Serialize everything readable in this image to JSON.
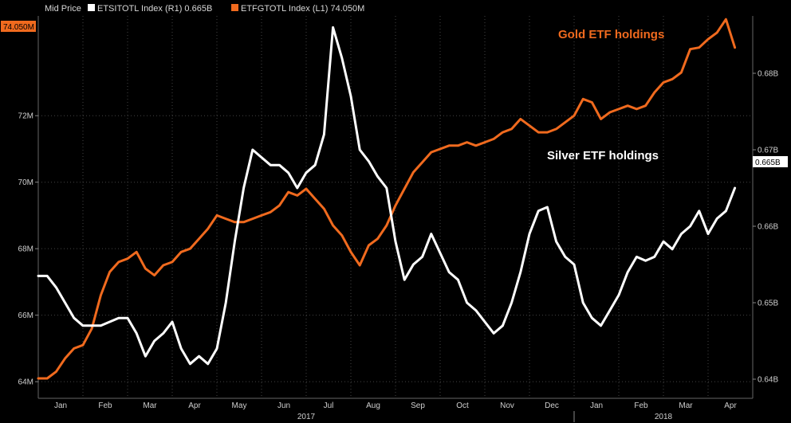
{
  "chart_data": {
    "type": "line",
    "legend": {
      "title": "Mid Price",
      "items": [
        {
          "label": "ETSITOTL Index  (R1) 0.665B",
          "color": "#ffffff"
        },
        {
          "label": "ETFGTOTL Index  (L1) 74.050M",
          "color": "#f06a1e"
        }
      ]
    },
    "y_left": {
      "ticks": [
        "64M",
        "66M",
        "68M",
        "70M",
        "72M"
      ],
      "tick_values": [
        64,
        66,
        68,
        70,
        72
      ],
      "range": [
        63.5,
        75
      ]
    },
    "y_right": {
      "ticks": [
        "0.64B",
        "0.65B",
        "0.66B",
        "0.67B",
        "0.68B"
      ],
      "tick_values": [
        0.64,
        0.65,
        0.66,
        0.67,
        0.68
      ],
      "range": [
        0.6375,
        0.6875
      ]
    },
    "x_range": [
      0,
      16.0
    ],
    "months": [
      {
        "label": "Jan",
        "x": 0.5
      },
      {
        "label": "Feb",
        "x": 1.5
      },
      {
        "label": "Mar",
        "x": 2.5
      },
      {
        "label": "Apr",
        "x": 3.5
      },
      {
        "label": "May",
        "x": 4.5
      },
      {
        "label": "Jun",
        "x": 5.5
      },
      {
        "label": "Jul",
        "x": 6.5
      },
      {
        "label": "Aug",
        "x": 7.5
      },
      {
        "label": "Sep",
        "x": 8.5
      },
      {
        "label": "Oct",
        "x": 9.5
      },
      {
        "label": "Nov",
        "x": 10.5
      },
      {
        "label": "Dec",
        "x": 11.5
      },
      {
        "label": "Jan",
        "x": 12.5
      },
      {
        "label": "Feb",
        "x": 13.5
      },
      {
        "label": "Mar",
        "x": 14.5
      },
      {
        "label": "Apr",
        "x": 15.5
      }
    ],
    "years": [
      {
        "label": "2017",
        "x": 6.0
      },
      {
        "label": "2018",
        "x": 14.0
      }
    ],
    "last_value_badges": {
      "left": "74.050M",
      "right": "0.665B"
    },
    "annotations": {
      "gold": "Gold ETF holdings",
      "silver": "Silver ETF holdings"
    },
    "colors": {
      "gold": "#f06a1e",
      "silver": "#ffffff",
      "background": "#000000",
      "grid": "#444444"
    },
    "grid": true,
    "series": [
      {
        "name": "Gold ETF holdings",
        "axis": "left",
        "x": [
          0,
          0.2,
          0.4,
          0.6,
          0.8,
          1.0,
          1.2,
          1.4,
          1.6,
          1.8,
          2.0,
          2.2,
          2.4,
          2.6,
          2.8,
          3.0,
          3.2,
          3.4,
          3.6,
          3.8,
          4.0,
          4.2,
          4.4,
          4.6,
          4.8,
          5.0,
          5.2,
          5.4,
          5.6,
          5.8,
          6.0,
          6.2,
          6.4,
          6.6,
          6.8,
          7.0,
          7.2,
          7.4,
          7.6,
          7.8,
          8.0,
          8.2,
          8.4,
          8.6,
          8.8,
          9.0,
          9.2,
          9.4,
          9.6,
          9.8,
          10.0,
          10.2,
          10.4,
          10.6,
          10.8,
          11.0,
          11.2,
          11.4,
          11.6,
          11.8,
          12.0,
          12.2,
          12.4,
          12.6,
          12.8,
          13.0,
          13.2,
          13.4,
          13.6,
          13.8,
          14.0,
          14.2,
          14.4,
          14.6,
          14.8,
          15.0,
          15.2,
          15.4,
          15.6
        ],
        "values": [
          64.1,
          64.1,
          64.3,
          64.7,
          65.0,
          65.1,
          65.6,
          66.6,
          67.3,
          67.6,
          67.7,
          67.9,
          67.4,
          67.2,
          67.5,
          67.6,
          67.9,
          68.0,
          68.3,
          68.6,
          69.0,
          68.9,
          68.8,
          68.8,
          68.9,
          69.0,
          69.1,
          69.3,
          69.7,
          69.6,
          69.8,
          69.5,
          69.2,
          68.7,
          68.4,
          67.9,
          67.5,
          68.1,
          68.3,
          68.7,
          69.3,
          69.8,
          70.3,
          70.6,
          70.9,
          71.0,
          71.1,
          71.1,
          71.2,
          71.1,
          71.2,
          71.3,
          71.5,
          71.6,
          71.9,
          71.7,
          71.5,
          71.5,
          71.6,
          71.8,
          72.0,
          72.5,
          72.4,
          71.9,
          72.1,
          72.2,
          72.3,
          72.2,
          72.3,
          72.7,
          73.0,
          73.1,
          73.3,
          74.0,
          74.05,
          74.3,
          74.5,
          74.9,
          74.05
        ],
        "color": "#f06a1e"
      },
      {
        "name": "Silver ETF holdings",
        "axis": "right",
        "x": [
          0,
          0.2,
          0.4,
          0.6,
          0.8,
          1.0,
          1.2,
          1.4,
          1.6,
          1.8,
          2.0,
          2.2,
          2.4,
          2.6,
          2.8,
          3.0,
          3.2,
          3.4,
          3.6,
          3.8,
          4.0,
          4.2,
          4.4,
          4.6,
          4.8,
          5.0,
          5.2,
          5.4,
          5.6,
          5.8,
          6.0,
          6.2,
          6.4,
          6.6,
          6.8,
          7.0,
          7.2,
          7.4,
          7.6,
          7.8,
          8.0,
          8.2,
          8.4,
          8.6,
          8.8,
          9.0,
          9.2,
          9.4,
          9.6,
          9.8,
          10.0,
          10.2,
          10.4,
          10.6,
          10.8,
          11.0,
          11.2,
          11.4,
          11.6,
          11.8,
          12.0,
          12.2,
          12.4,
          12.6,
          12.8,
          13.0,
          13.2,
          13.4,
          13.6,
          13.8,
          14.0,
          14.2,
          14.4,
          14.6,
          14.8,
          15.0,
          15.2,
          15.4,
          15.6
        ],
        "values": [
          0.6535,
          0.6535,
          0.652,
          0.65,
          0.648,
          0.647,
          0.647,
          0.647,
          0.6475,
          0.648,
          0.648,
          0.646,
          0.643,
          0.645,
          0.646,
          0.6475,
          0.644,
          0.642,
          0.643,
          0.642,
          0.644,
          0.65,
          0.658,
          0.665,
          0.67,
          0.669,
          0.668,
          0.668,
          0.667,
          0.665,
          0.667,
          0.668,
          0.672,
          0.686,
          0.682,
          0.677,
          0.67,
          0.6685,
          0.6665,
          0.665,
          0.658,
          0.653,
          0.655,
          0.656,
          0.659,
          0.6565,
          0.654,
          0.653,
          0.65,
          0.649,
          0.6475,
          0.646,
          0.647,
          0.65,
          0.654,
          0.659,
          0.662,
          0.6625,
          0.658,
          0.656,
          0.655,
          0.65,
          0.648,
          0.647,
          0.649,
          0.651,
          0.654,
          0.656,
          0.6555,
          0.656,
          0.658,
          0.657,
          0.659,
          0.66,
          0.662,
          0.659,
          0.661,
          0.662,
          0.665
        ],
        "color": "#ffffff"
      }
    ]
  }
}
